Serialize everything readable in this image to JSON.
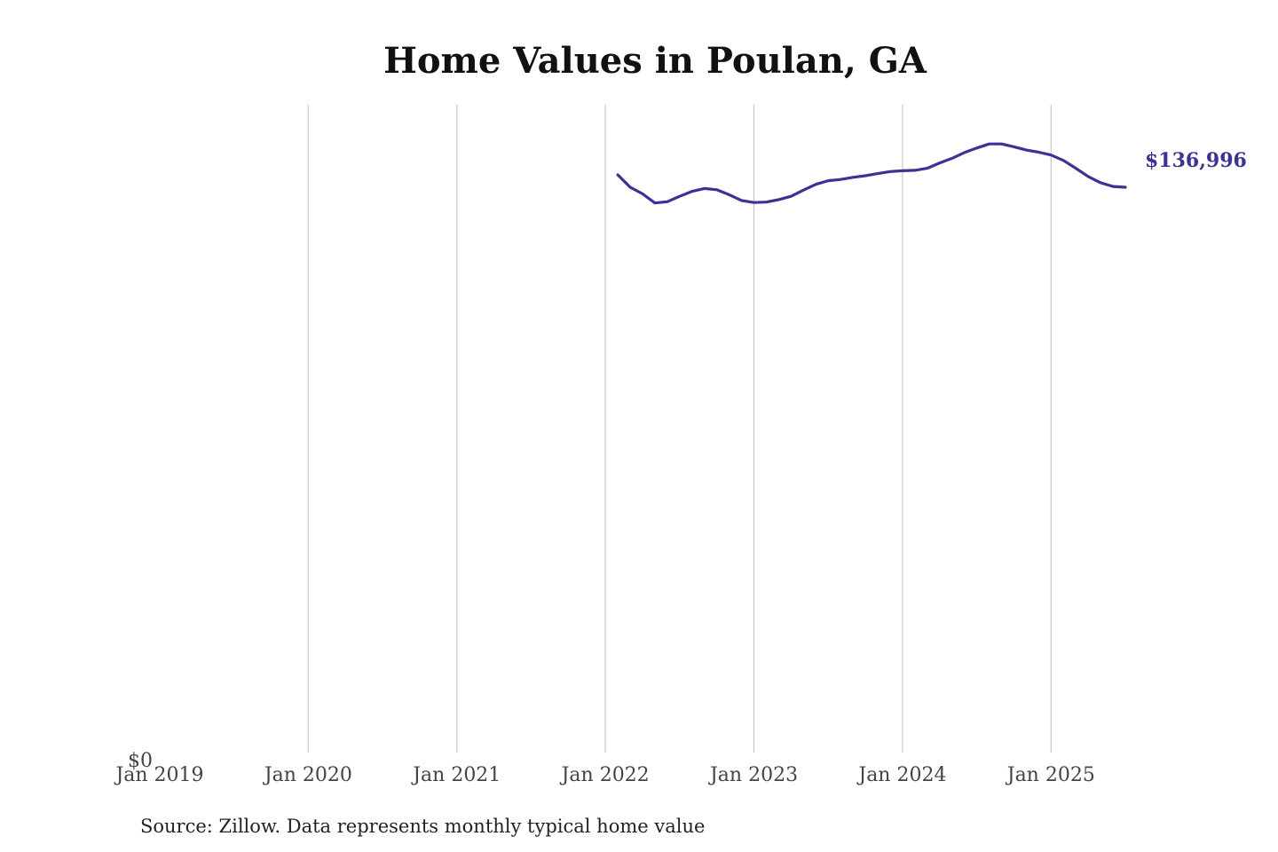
{
  "chart_data": {
    "type": "line",
    "title": "Home Values in Poulan, GA",
    "xlabel": "",
    "ylabel": "",
    "x_ticks": [
      "Jan 2019",
      "Jan 2020",
      "Jan 2021",
      "Jan 2022",
      "Jan 2023",
      "Jan 2024",
      "Jan 2025"
    ],
    "y_ticks": [
      "$0"
    ],
    "ylim": [
      0,
      157000
    ],
    "grid": "vertical",
    "legend": "none",
    "end_label": "$136,996",
    "colors": {
      "line": "#3b3295",
      "grid": "#c8c8c8"
    },
    "series": [
      {
        "x": [
          "2022-02",
          "2022-03",
          "2022-04",
          "2022-05",
          "2022-06",
          "2022-07",
          "2022-08",
          "2022-09",
          "2022-10",
          "2022-11",
          "2022-12",
          "2023-01",
          "2023-02",
          "2023-03",
          "2023-04",
          "2023-05",
          "2023-06",
          "2023-07",
          "2023-08",
          "2023-09",
          "2023-10",
          "2023-11",
          "2023-12",
          "2024-01",
          "2024-02",
          "2024-03",
          "2024-04",
          "2024-05",
          "2024-06",
          "2024-07",
          "2024-08",
          "2024-09",
          "2024-10",
          "2024-11",
          "2024-12",
          "2025-01",
          "2025-02",
          "2025-03",
          "2025-04",
          "2025-05",
          "2025-06",
          "2025-07"
        ],
        "y": [
          140000,
          137000,
          135400,
          133200,
          133500,
          134800,
          136000,
          136700,
          136400,
          135200,
          133800,
          133300,
          133400,
          134000,
          134800,
          136300,
          137700,
          138600,
          138900,
          139400,
          139800,
          140300,
          140800,
          141000,
          141100,
          141600,
          142900,
          144000,
          145400,
          146500,
          147500,
          147500,
          146800,
          146000,
          145500,
          144800,
          143500,
          141600,
          139600,
          138100,
          137200,
          136996
        ]
      }
    ]
  },
  "source_note": "Source: Zillow. Data represents monthly typical home value"
}
